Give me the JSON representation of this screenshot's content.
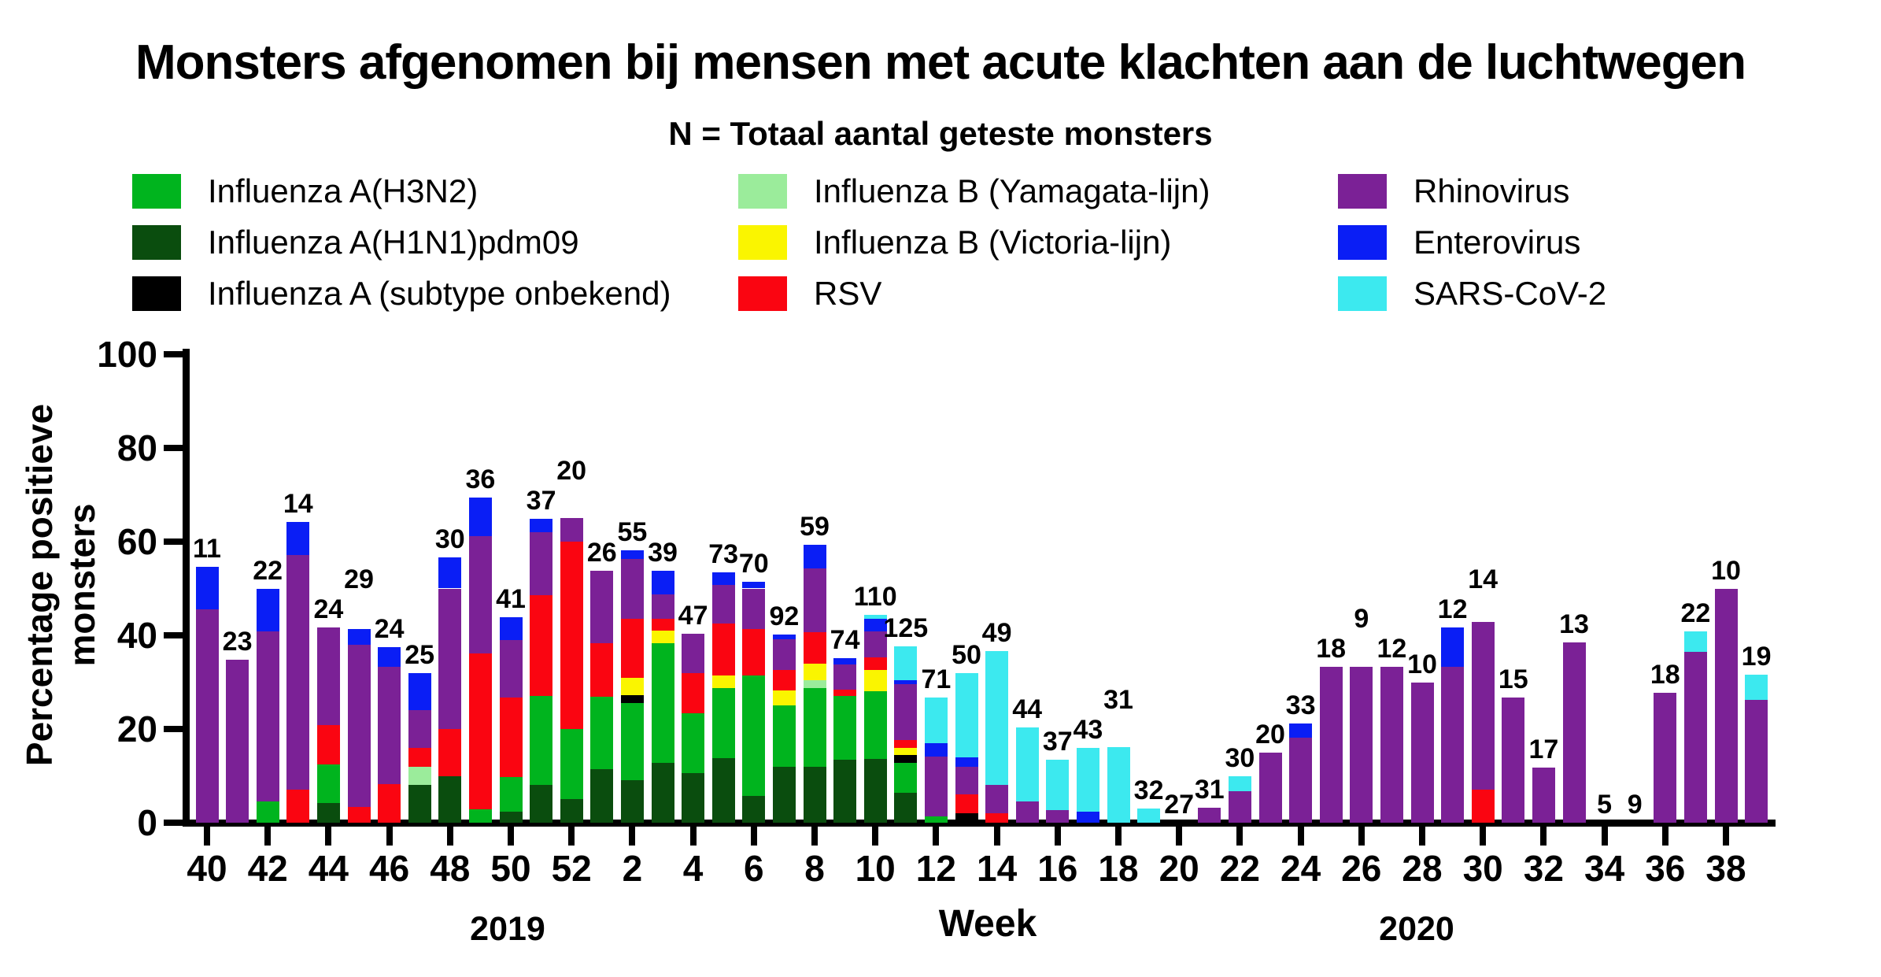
{
  "title": "Monsters afgenomen bij mensen met acute klachten aan de luchtwegen",
  "subtitle": "N = Totaal aantal geteste monsters",
  "legend": {
    "columns": [
      [
        {
          "label": "Influenza A(H3N2)",
          "color": "#00B41E"
        },
        {
          "label": "Influenza A(H1N1)pdm09",
          "color": "#0A4D0E"
        },
        {
          "label": "Influenza A (subtype onbekend)",
          "color": "#000000"
        }
      ],
      [
        {
          "label": "Influenza B (Yamagata-lijn)",
          "color": "#9BEC9B"
        },
        {
          "label": "Influenza B (Victoria-lijn)",
          "color": "#FAF500"
        },
        {
          "label": "RSV",
          "color": "#FA0511"
        }
      ],
      [
        {
          "label": "Rhinovirus",
          "color": "#7B2196"
        },
        {
          "label": "Enterovirus",
          "color": "#0A1EF5"
        },
        {
          "label": "SARS-CoV-2",
          "color": "#3CE9EF"
        }
      ]
    ]
  },
  "y_axis": {
    "title": "Percentage positieve monsters",
    "ticks": [
      0,
      20,
      40,
      60,
      80,
      100
    ]
  },
  "x_axis": {
    "title": "Week",
    "year_left": "2019",
    "year_right": "2020"
  },
  "chart_data": {
    "type": "bar",
    "stacked": true,
    "title": "Monsters afgenomen bij mensen met acute klachten aan de luchtwegen",
    "xlabel": "Week",
    "ylabel": "Percentage positieve monsters",
    "ylim": [
      0,
      100
    ],
    "grid": false,
    "categories": [
      "40",
      "41",
      "42",
      "43",
      "44",
      "45",
      "46",
      "47",
      "48",
      "49",
      "50",
      "51",
      "52",
      "1",
      "2",
      "3",
      "4",
      "5",
      "6",
      "7",
      "8",
      "9",
      "10",
      "11",
      "12",
      "13",
      "14",
      "15",
      "16",
      "17",
      "18",
      "19",
      "20",
      "21",
      "22",
      "23",
      "24",
      "25",
      "26",
      "27",
      "28",
      "29",
      "30",
      "31",
      "32",
      "33",
      "34",
      "35",
      "36",
      "37",
      "38",
      "39"
    ],
    "category_years": {
      "2019": [
        "40",
        "52"
      ],
      "2020": [
        "1",
        "39"
      ]
    },
    "n_labels": [
      "11",
      "23",
      "22",
      "14",
      "24",
      "29",
      "24",
      "25",
      "30",
      "36",
      "41",
      "37",
      "20",
      "26",
      "55",
      "39",
      "47",
      "73",
      "70",
      "92",
      "59",
      "74",
      "110",
      "125",
      "71",
      "50",
      "49",
      "44",
      "37",
      "43",
      "31",
      "32",
      "27",
      "31",
      "30",
      "20",
      "33",
      "18",
      "9",
      "12",
      "10",
      "12",
      "14",
      "15",
      "17",
      "13",
      "5",
      "9",
      "18",
      "22",
      "10",
      "19"
    ],
    "series": [
      {
        "name": "Influenza A(H1N1)pdm09",
        "color": "#0A4D0E",
        "values": [
          0,
          0,
          0,
          0,
          4.2,
          0,
          0,
          8,
          10,
          0,
          2.4,
          8.1,
          5,
          11.5,
          9.1,
          12.8,
          10.6,
          13.7,
          5.7,
          12,
          11.9,
          13.5,
          13.6,
          6.4,
          0,
          0,
          0,
          0,
          0,
          0,
          0,
          0,
          0,
          0,
          0,
          0,
          0,
          0,
          0,
          0,
          0,
          0,
          0,
          0,
          0,
          0,
          0,
          0,
          0,
          0,
          0,
          0
        ]
      },
      {
        "name": "Influenza A(H3N2)",
        "color": "#00B41E",
        "values": [
          0,
          0,
          4.5,
          0,
          8.3,
          0,
          0,
          0,
          0,
          2.8,
          7.3,
          18.9,
          15,
          15.4,
          16.4,
          25.6,
          12.8,
          15.1,
          25.7,
          13,
          16.9,
          13.5,
          14.5,
          6.4,
          1.4,
          0,
          0,
          0,
          0,
          0,
          0,
          0,
          0,
          0,
          0,
          0,
          0,
          0,
          0,
          0,
          0,
          0,
          0,
          0,
          0,
          0,
          0,
          0,
          0,
          0,
          0,
          0
        ]
      },
      {
        "name": "Influenza A (subtype onbekend)",
        "color": "#000000",
        "values": [
          0,
          0,
          0,
          0,
          0,
          0,
          0,
          0,
          0,
          0,
          0,
          0,
          0,
          0,
          1.8,
          0,
          0,
          0,
          0,
          0,
          0,
          0,
          0,
          1.6,
          0,
          2,
          0,
          0,
          0,
          0,
          0,
          0,
          0,
          0,
          0,
          0,
          0,
          0,
          0,
          0,
          0,
          0,
          0,
          0,
          0,
          0,
          0,
          0,
          0,
          0,
          0,
          0
        ]
      },
      {
        "name": "Influenza B (Yamagata-lijn)",
        "color": "#9BEC9B",
        "values": [
          0,
          0,
          0,
          0,
          0,
          0,
          0,
          4,
          0,
          0,
          0,
          0,
          0,
          0,
          0,
          0,
          0,
          0,
          0,
          0,
          1.7,
          0,
          0,
          0,
          0,
          0,
          0,
          0,
          0,
          0,
          0,
          0,
          0,
          0,
          0,
          0,
          0,
          0,
          0,
          0,
          0,
          0,
          0,
          0,
          0,
          0,
          0,
          0,
          0,
          0,
          0,
          0
        ]
      },
      {
        "name": "Influenza B (Victoria-lijn)",
        "color": "#FAF500",
        "values": [
          0,
          0,
          0,
          0,
          0,
          0,
          0,
          0,
          0,
          0,
          0,
          0,
          0,
          0,
          3.6,
          2.6,
          0,
          2.7,
          0,
          3.3,
          3.4,
          0,
          4.5,
          1.6,
          0,
          0,
          0,
          0,
          0,
          0,
          0,
          0,
          0,
          0,
          0,
          0,
          0,
          0,
          0,
          0,
          0,
          0,
          0,
          0,
          0,
          0,
          0,
          0,
          0,
          0,
          0,
          0
        ]
      },
      {
        "name": "RSV",
        "color": "#FA0511",
        "values": [
          0,
          0,
          0,
          7.1,
          8.3,
          3.4,
          8.3,
          4,
          10,
          33.3,
          17.1,
          21.6,
          40,
          11.5,
          12.7,
          2.6,
          8.5,
          11,
          10,
          4.3,
          6.8,
          1.4,
          2.7,
          1.6,
          0,
          4,
          2,
          0,
          0,
          0,
          0,
          0,
          0,
          0,
          0,
          0,
          0,
          0,
          0,
          0,
          0,
          0,
          7.1,
          0,
          0,
          0,
          0,
          0,
          0,
          0,
          0,
          0
        ]
      },
      {
        "name": "Rhinovirus",
        "color": "#7B2196",
        "values": [
          45.5,
          34.8,
          36.4,
          50,
          20.8,
          34.5,
          25,
          8,
          30,
          25,
          12.2,
          13.5,
          5,
          15.4,
          12.7,
          5.1,
          8.5,
          8.2,
          8.6,
          6.5,
          13.6,
          5.4,
          5.5,
          12,
          12.7,
          6,
          6.1,
          4.5,
          2.7,
          0,
          0,
          0,
          0,
          3.2,
          6.7,
          15,
          18.2,
          33.3,
          33.3,
          33.3,
          30,
          33.3,
          35.7,
          26.7,
          11.8,
          38.5,
          0,
          0,
          27.8,
          36.4,
          50,
          26.3
        ]
      },
      {
        "name": "Enterovirus",
        "color": "#0A1EF5",
        "values": [
          9.1,
          0,
          9.1,
          7.1,
          0,
          3.4,
          4.2,
          8,
          6.7,
          8.3,
          4.9,
          2.7,
          0,
          0,
          1.8,
          5.1,
          0,
          2.7,
          1.4,
          1.1,
          5.1,
          1.4,
          2.7,
          0.8,
          2.8,
          2,
          0,
          0,
          0,
          2.3,
          0,
          0,
          0,
          0,
          0,
          0,
          3,
          0,
          0,
          0,
          0,
          8.3,
          0,
          0,
          0,
          0,
          0,
          0,
          0,
          0,
          0,
          0
        ]
      },
      {
        "name": "SARS-CoV-2",
        "color": "#3CE9EF",
        "values": [
          0,
          0,
          0,
          0,
          0,
          0,
          0,
          0,
          0,
          0,
          0,
          0,
          0,
          0,
          0,
          0,
          0,
          0,
          0,
          0,
          0,
          0,
          0.9,
          7.2,
          9.9,
          18,
          28.6,
          15.9,
          10.8,
          13.7,
          16.1,
          3.1,
          0,
          0,
          3.3,
          0,
          0,
          0,
          0,
          0,
          0,
          0,
          0,
          0,
          0,
          0,
          0,
          0,
          0,
          4.5,
          0,
          5.3
        ]
      }
    ]
  }
}
